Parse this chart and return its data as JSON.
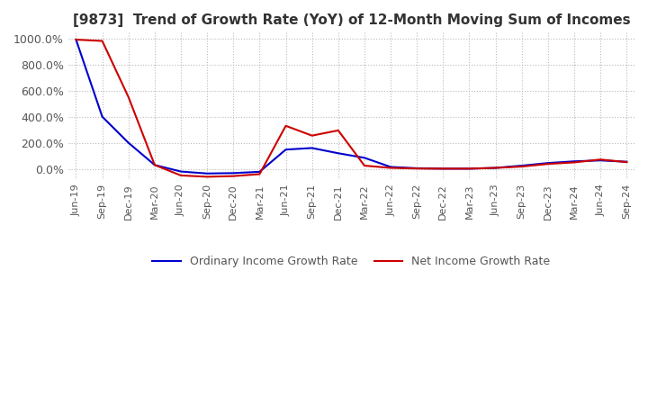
{
  "title": "[9873]  Trend of Growth Rate (YoY) of 12-Month Moving Sum of Incomes",
  "legend_labels": [
    "Ordinary Income Growth Rate",
    "Net Income Growth Rate"
  ],
  "line_colors": [
    "#0000cc",
    "#cc0000"
  ],
  "background_color": "#FFFFFF",
  "grid_color": "#BBBBBB",
  "ylim": [
    -80,
    1050
  ],
  "yticks": [
    0,
    200,
    400,
    600,
    800,
    1000
  ],
  "ytick_labels": [
    "0.0%",
    "200.0%",
    "400.0%",
    "600.0%",
    "800.0%",
    "1000.0%"
  ],
  "x_labels": [
    "Jun-19",
    "Sep-19",
    "Dec-19",
    "Mar-20",
    "Jun-20",
    "Sep-20",
    "Dec-20",
    "Mar-21",
    "Jun-21",
    "Sep-21",
    "Dec-21",
    "Mar-22",
    "Jun-22",
    "Sep-22",
    "Dec-22",
    "Mar-23",
    "Jun-23",
    "Sep-23",
    "Dec-23",
    "Mar-24",
    "Jun-24",
    "Sep-24"
  ],
  "ordinary_income": [
    990,
    400,
    200,
    30,
    -20,
    -35,
    -32,
    -22,
    148,
    160,
    120,
    85,
    15,
    5,
    2,
    2,
    8,
    25,
    45,
    58,
    65,
    55
  ],
  "net_income": [
    990,
    980,
    550,
    30,
    -50,
    -60,
    -55,
    -40,
    330,
    255,
    295,
    25,
    8,
    3,
    2,
    2,
    8,
    18,
    38,
    50,
    72,
    52
  ]
}
